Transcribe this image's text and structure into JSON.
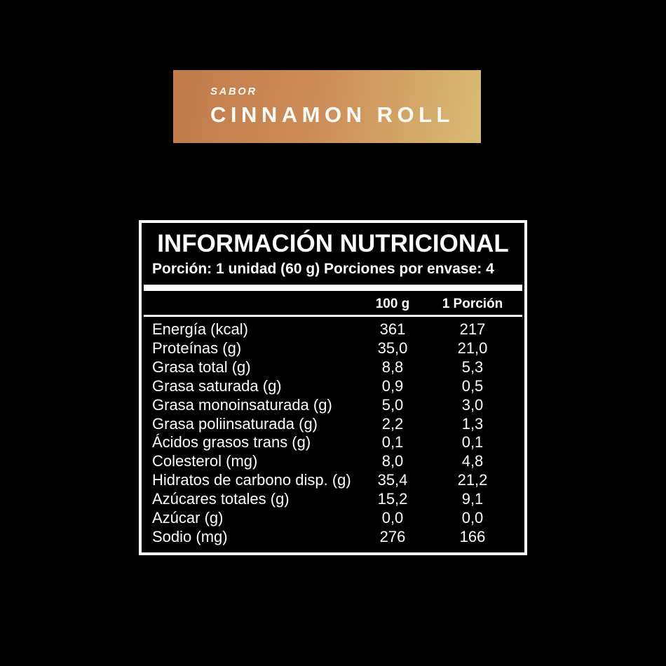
{
  "page": {
    "background": "#000000"
  },
  "flavor_banner": {
    "label": "SABOR",
    "name": "CINNAMON ROLL",
    "gradient_start": "#c17b4c",
    "gradient_mid": "#cd8d58",
    "gradient_end": "#d9bb74",
    "text_color": "#fdfbf7"
  },
  "nutrition_panel": {
    "title": "INFORMACIÓN NUTRICIONAL",
    "serving_info": "Porción: 1 unidad (60 g) Porciones por envase: 4",
    "columns": {
      "per_100g": "100 g",
      "per_portion": "1 Porción"
    },
    "rows": [
      {
        "label": "Energía (kcal)",
        "per_100g": "361",
        "per_portion": "217"
      },
      {
        "label": "Proteínas (g)",
        "per_100g": "35,0",
        "per_portion": "21,0"
      },
      {
        "label": "Grasa total (g)",
        "per_100g": "8,8",
        "per_portion": "5,3"
      },
      {
        "label": "Grasa saturada (g)",
        "per_100g": "0,9",
        "per_portion": "0,5"
      },
      {
        "label": "Grasa monoinsaturada (g)",
        "per_100g": "5,0",
        "per_portion": "3,0"
      },
      {
        "label": "Grasa poliinsaturada (g)",
        "per_100g": "2,2",
        "per_portion": "1,3"
      },
      {
        "label": "Ácidos grasos trans (g)",
        "per_100g": "0,1",
        "per_portion": "0,1"
      },
      {
        "label": "Colesterol (mg)",
        "per_100g": "8,0",
        "per_portion": "4,8"
      },
      {
        "label": "Hidratos de carbono disp. (g)",
        "per_100g": "35,4",
        "per_portion": "21,2"
      },
      {
        "label": "Azúcares totales (g)",
        "per_100g": "15,2",
        "per_portion": "9,1"
      },
      {
        "label": "Azúcar (g)",
        "per_100g": "0,0",
        "per_portion": "0,0"
      },
      {
        "label": "Sodio (mg)",
        "per_100g": "276",
        "per_portion": "166"
      }
    ]
  }
}
